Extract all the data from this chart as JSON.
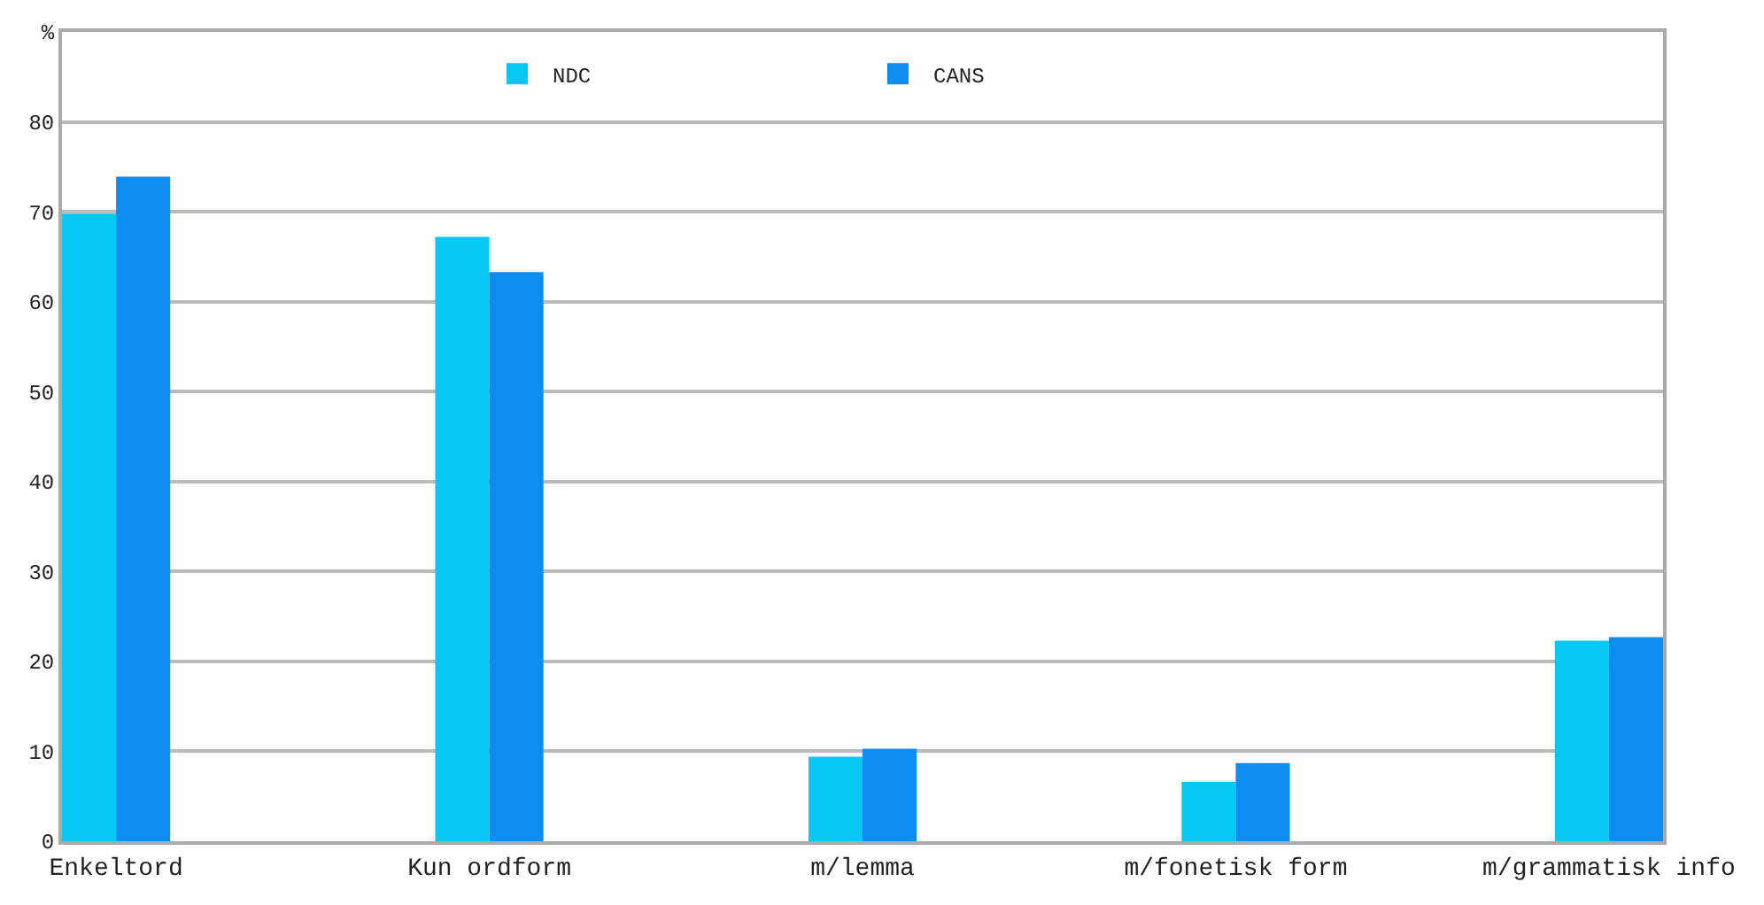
{
  "chart_data": {
    "type": "bar",
    "categories": [
      "Enkeltord",
      "Kun ordform",
      "m/lemma",
      "m/fonetisk form",
      "m/grammatisk info"
    ],
    "series": [
      {
        "name": "NDC",
        "color": "#07c8f4",
        "values": [
          69.8,
          67.2,
          9.4,
          6.6,
          22.3
        ]
      },
      {
        "name": "CANS",
        "color": "#0d8cf2",
        "values": [
          73.9,
          63.3,
          10.3,
          8.7,
          22.7
        ]
      }
    ],
    "ylim": [
      0,
      90
    ],
    "yticks": [
      0,
      10,
      20,
      30,
      40,
      50,
      60,
      70,
      80,
      {
        "value": 90,
        "label": "%"
      }
    ],
    "grid": "y",
    "legend": "top"
  }
}
